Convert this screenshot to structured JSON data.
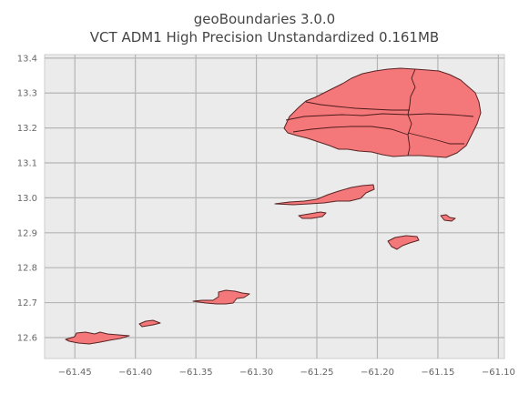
{
  "title": {
    "line1": "geoBoundaries 3.0.0",
    "line2": "VCT ADM1 High Precision Unstandardized 0.161MB"
  },
  "map": {
    "background_color": "#ebebeb",
    "fill_color": "#f4777a",
    "edge_color": "#5a2424",
    "xlim": [
      -61.475,
      -61.095
    ],
    "ylim": [
      12.54,
      13.41
    ],
    "x_ticks": [
      {
        "value": -61.45,
        "label": "−61.45"
      },
      {
        "value": -61.4,
        "label": "−61.40"
      },
      {
        "value": -61.35,
        "label": "−61.35"
      },
      {
        "value": -61.3,
        "label": "−61.30"
      },
      {
        "value": -61.25,
        "label": "−61.25"
      },
      {
        "value": -61.2,
        "label": "−61.20"
      },
      {
        "value": -61.15,
        "label": "−61.15"
      },
      {
        "value": -61.1,
        "label": "−61.10"
      }
    ],
    "y_ticks": [
      {
        "value": 12.6,
        "label": "12.6"
      },
      {
        "value": 12.7,
        "label": "12.7"
      },
      {
        "value": 12.8,
        "label": "12.8"
      },
      {
        "value": 12.9,
        "label": "12.9"
      },
      {
        "value": 13.0,
        "label": "13.0"
      },
      {
        "value": 13.1,
        "label": "13.1"
      },
      {
        "value": 13.2,
        "label": "13.2"
      },
      {
        "value": 13.3,
        "label": "13.3"
      },
      {
        "value": 13.4,
        "label": "13.4"
      }
    ]
  }
}
